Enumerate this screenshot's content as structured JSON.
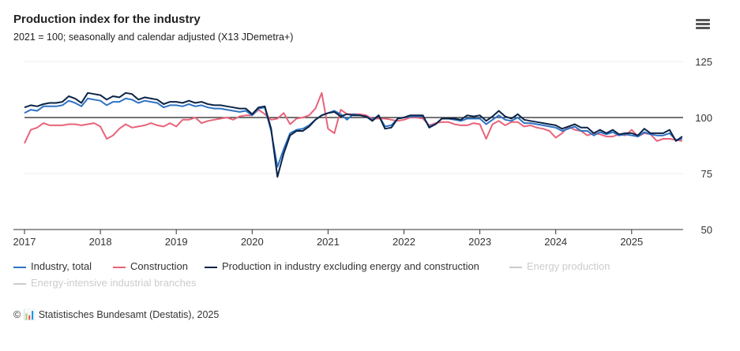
{
  "header": {
    "title": "Production index for the industry",
    "subtitle": "2021 = 100; seasonally and calendar adjusted (X13 JDemetra+)",
    "menu_icon": "hamburger-icon"
  },
  "credit": "© 📊 Statistisches Bundesamt (Destatis), 2025",
  "chart_data": {
    "type": "line",
    "title": "Production index for the industry",
    "x_start": "2017-01",
    "frequency": "monthly",
    "xticks": [
      "2017",
      "2018",
      "2019",
      "2020",
      "2021",
      "2022",
      "2023",
      "2024",
      "2025"
    ],
    "yticks": [
      "125",
      "100",
      "75",
      "50"
    ],
    "ylim": [
      50,
      125
    ],
    "reference_line": 100,
    "legend_placement": "bottom",
    "series": [
      {
        "name": "Industry total",
        "label": "Industry, total",
        "color": "#2f72c4",
        "visible": true,
        "values": [
          102,
          103.5,
          103,
          105,
          105,
          105,
          105.5,
          107.5,
          106.5,
          105,
          108.5,
          108,
          107.5,
          105.5,
          107,
          107,
          108.5,
          108,
          106.5,
          107.5,
          107,
          106.5,
          104.5,
          105.5,
          105.5,
          105,
          106,
          105,
          105.5,
          104.5,
          104,
          104,
          103.5,
          103,
          102.5,
          103,
          101,
          104,
          104.5,
          94,
          78,
          86,
          93,
          94.5,
          95,
          96.5,
          99,
          101,
          102,
          103,
          101.5,
          99,
          101.5,
          101,
          100.5,
          99,
          101,
          96,
          96.5,
          99.5,
          100,
          100.5,
          100.5,
          100.5,
          96,
          97,
          99.5,
          99.5,
          99,
          98.5,
          99.5,
          99.5,
          99.5,
          97,
          99,
          101,
          99,
          98.5,
          100,
          97.5,
          97.5,
          97,
          96.5,
          96,
          95.5,
          94,
          95,
          96,
          94,
          94,
          92,
          93.5,
          92.5,
          93.5,
          92,
          92.5,
          92,
          91.5,
          93.5,
          92.5,
          92,
          92,
          93,
          90,
          90.5
        ]
      },
      {
        "name": "Construction",
        "label": "Construction",
        "color": "#e8637a",
        "visible": true,
        "values": [
          88.5,
          94.5,
          95.5,
          97.5,
          96.5,
          96.5,
          96.5,
          97,
          97,
          96.5,
          97,
          97.5,
          96,
          90.5,
          92,
          95,
          97,
          95.5,
          96,
          96.5,
          97.5,
          96.5,
          96,
          97.5,
          96,
          99,
          99,
          100,
          97.5,
          98.5,
          99,
          99.5,
          100,
          99,
          100.5,
          101,
          101,
          103.5,
          101.5,
          99,
          99.5,
          102,
          97,
          99.5,
          100,
          101,
          104,
          111,
          95,
          93,
          103.5,
          101.5,
          101.5,
          101.5,
          101,
          99.5,
          99.5,
          99.5,
          99,
          98.5,
          99,
          100,
          100,
          99.5,
          96.5,
          97.5,
          98,
          98,
          97,
          96.5,
          96.5,
          97.5,
          97,
          90.5,
          97,
          98.5,
          96.5,
          98,
          98,
          96,
          96.5,
          95.5,
          95,
          94,
          91,
          93,
          96,
          94.5,
          94,
          92,
          93,
          92.5,
          91.5,
          91.5,
          92.5,
          92,
          94.5,
          91.5,
          93,
          92.5,
          89.5,
          90.5,
          90.5,
          90,
          89.5
        ]
      },
      {
        "name": "Production in industry excluding energy and construction",
        "label": "Production in industry excluding energy and construction",
        "color": "#0b2447",
        "visible": true,
        "values": [
          104.5,
          105.5,
          105,
          106,
          106.5,
          106.5,
          107,
          109.5,
          108.5,
          106.5,
          111,
          110.5,
          110,
          108,
          109.5,
          109,
          111,
          110.5,
          108,
          109,
          108.5,
          108,
          106,
          107,
          107,
          106.5,
          107.5,
          106.5,
          107,
          106,
          105.5,
          105.5,
          105,
          104.5,
          104,
          104,
          101.5,
          104.5,
          105,
          95,
          73.5,
          84,
          92,
          94,
          94,
          96,
          99,
          101,
          102,
          102.5,
          100.5,
          101.5,
          101,
          101,
          100.5,
          98.5,
          101,
          95,
          95.5,
          99.5,
          100,
          101,
          101,
          101,
          95.5,
          97,
          99.5,
          99.5,
          99.5,
          99,
          101,
          100.5,
          101,
          98.5,
          100.5,
          103,
          100.5,
          99.5,
          101.5,
          99,
          98.5,
          98,
          97.5,
          97,
          96.5,
          95,
          96,
          97,
          95.5,
          95.5,
          93,
          94.5,
          93,
          94.5,
          92.5,
          93,
          93,
          92,
          95,
          93,
          93,
          93,
          94.5,
          89.5,
          91.5
        ]
      },
      {
        "name": "Energy production",
        "label": "Energy production",
        "color": "#cccccc",
        "visible": false,
        "values": []
      },
      {
        "name": "Energy-intensive industrial branches",
        "label": "Energy-intensive industrial branches",
        "color": "#cccccc",
        "visible": false,
        "values": []
      }
    ]
  }
}
